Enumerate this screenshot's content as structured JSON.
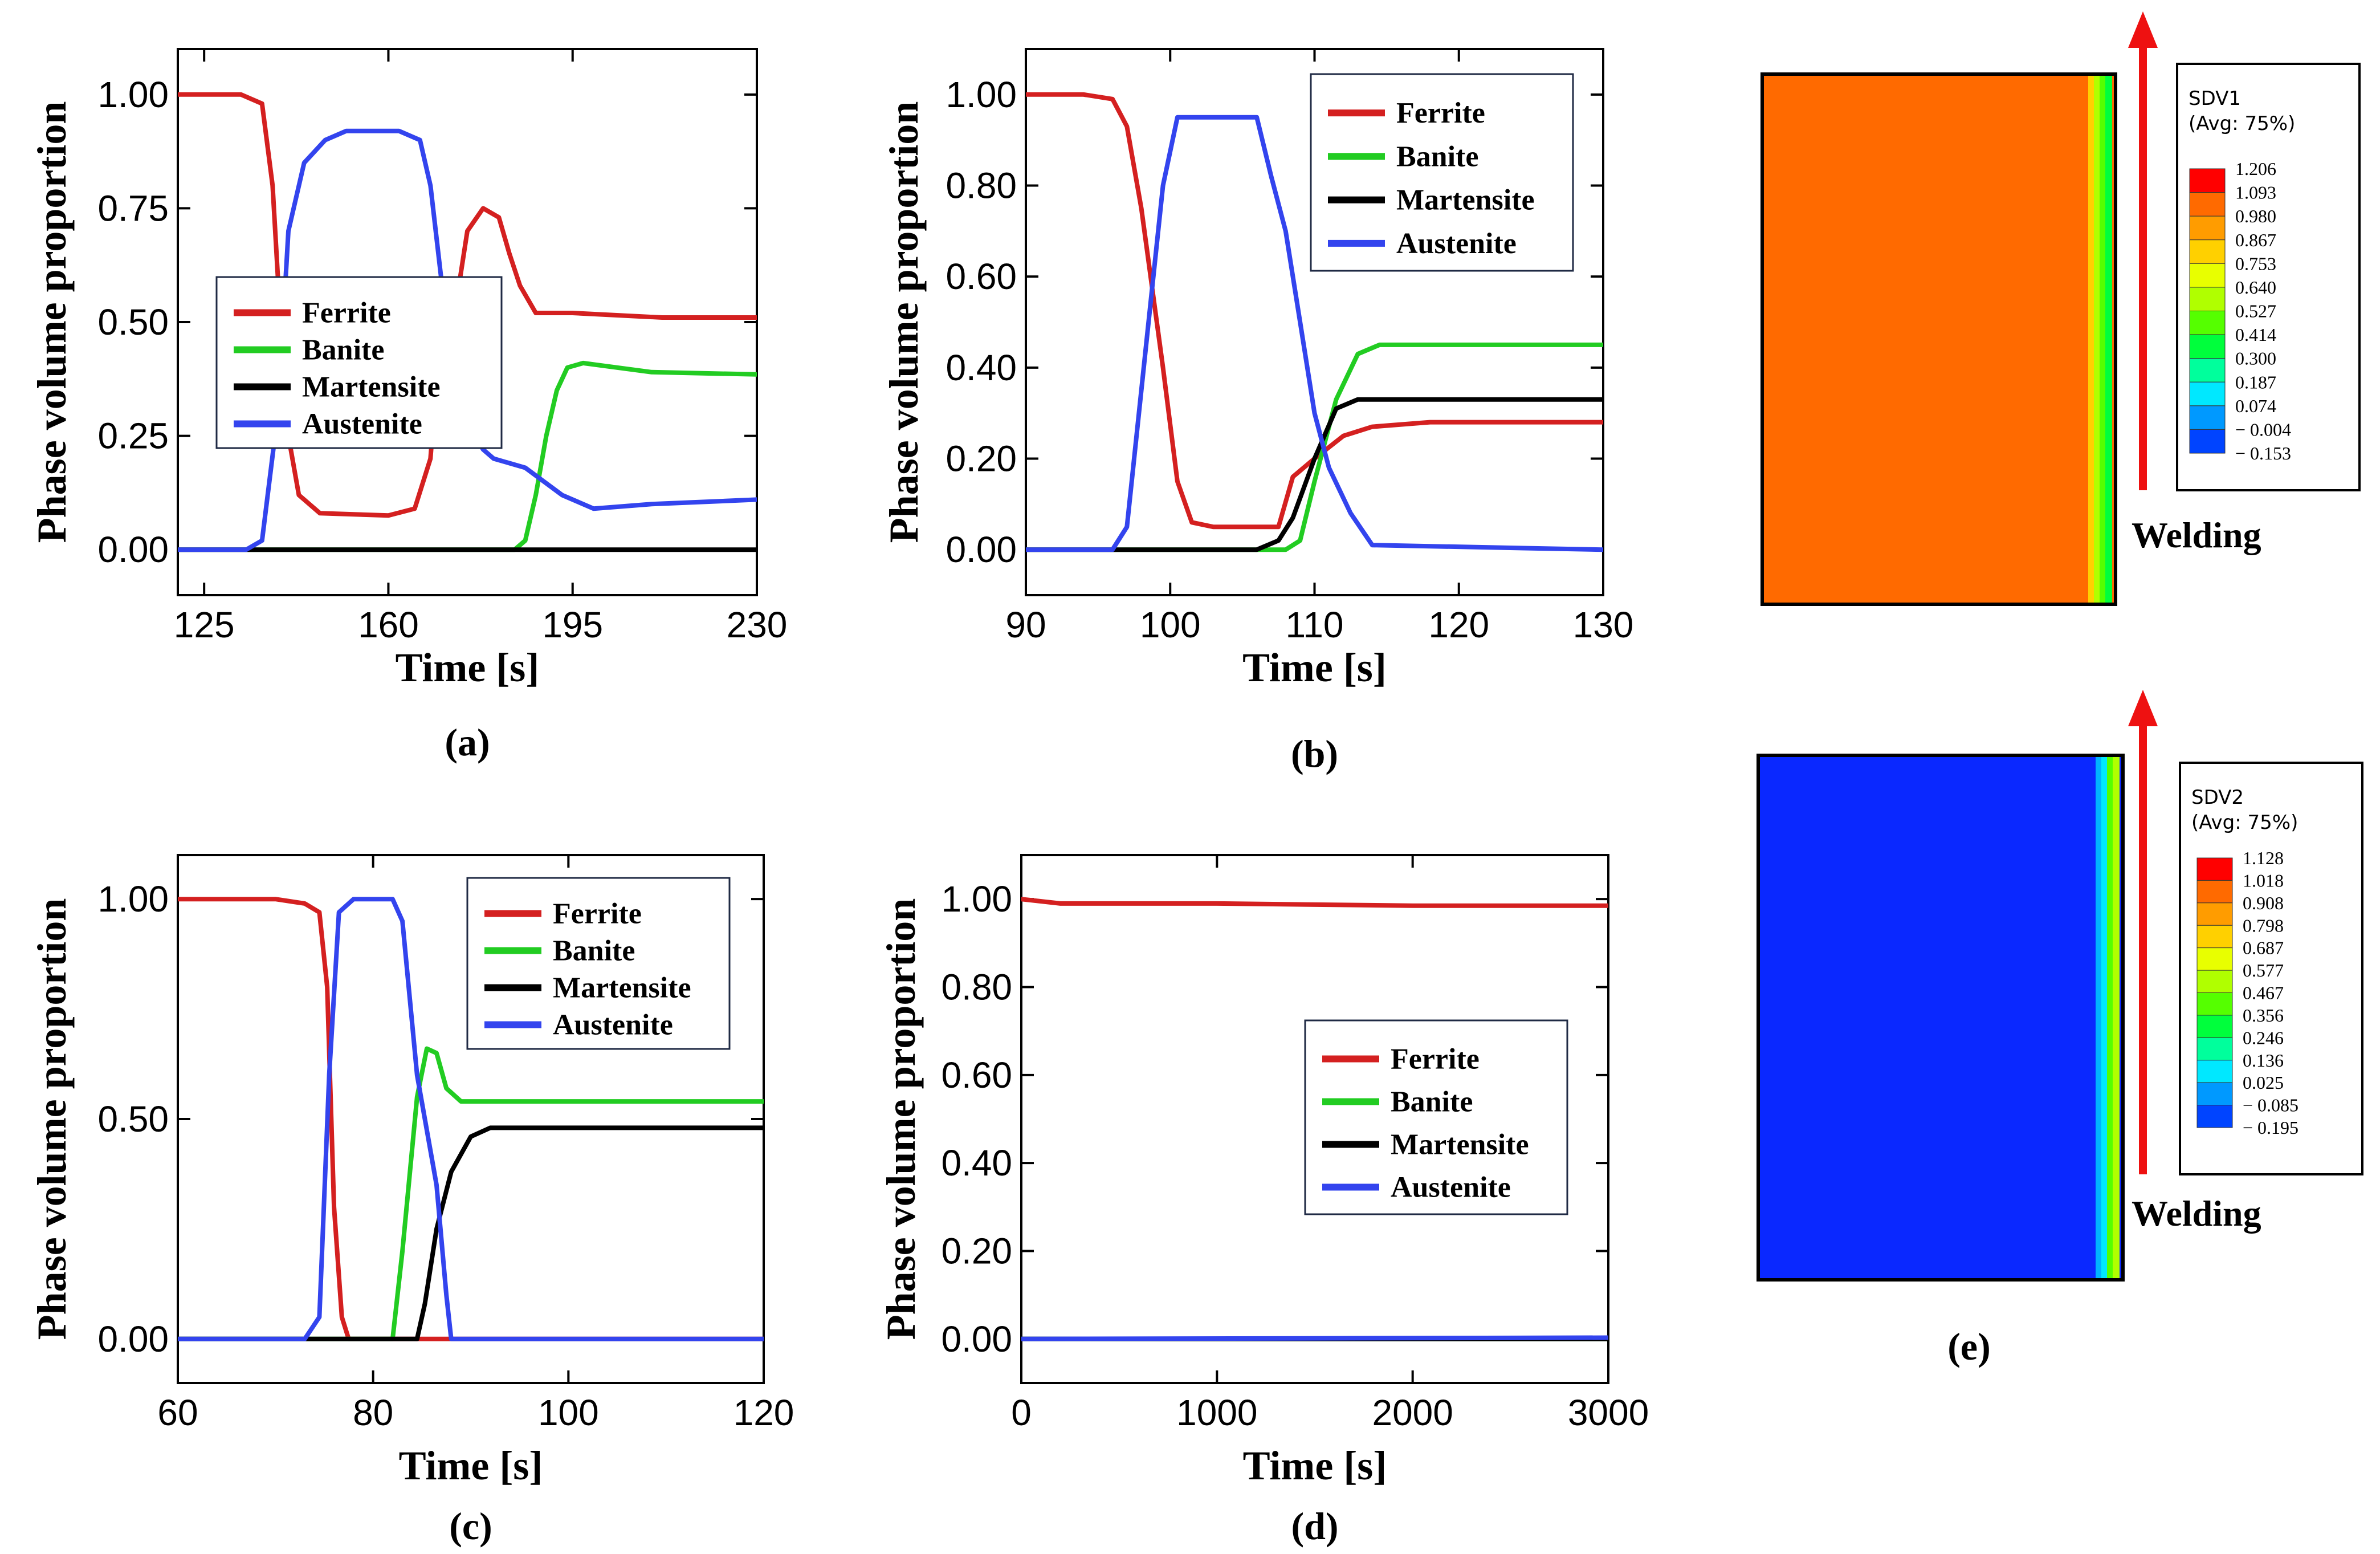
{
  "colors": {
    "ferrite": "#d42020",
    "banite": "#22cc22",
    "martensite": "#000000",
    "austenite": "#3344ee",
    "arrow": "#ee1111"
  },
  "chart_data": [
    {
      "id": "a",
      "type": "line",
      "caption": "(a)",
      "xlabel": "Time [s]",
      "ylabel": "Phase volume proportion",
      "xlim": [
        120,
        230
      ],
      "ylim": [
        -0.1,
        1.1
      ],
      "xticks": [
        125,
        160,
        195,
        230
      ],
      "xtick_labels": [
        "125",
        "160",
        "195",
        "230"
      ],
      "yticks": [
        0,
        0.25,
        0.5,
        0.75,
        1
      ],
      "ytick_labels": [
        "0.00",
        "0.25",
        "0.50",
        "0.75",
        "1.00"
      ],
      "legend": [
        "Ferrite",
        "Banite",
        "Martensite",
        "Austenite"
      ],
      "series": [
        {
          "name": "Ferrite",
          "color_key": "ferrite",
          "points": [
            [
              120,
              1
            ],
            [
              132,
              1
            ],
            [
              136,
              0.98
            ],
            [
              138,
              0.8
            ],
            [
              139.5,
              0.5
            ],
            [
              141,
              0.25
            ],
            [
              143,
              0.12
            ],
            [
              147,
              0.08
            ],
            [
              160,
              0.075
            ],
            [
              165,
              0.09
            ],
            [
              168,
              0.2
            ],
            [
              170,
              0.5
            ],
            [
              173,
              0.55
            ],
            [
              175,
              0.7
            ],
            [
              178,
              0.75
            ],
            [
              181,
              0.73
            ],
            [
              183,
              0.65
            ],
            [
              185,
              0.58
            ],
            [
              188,
              0.52
            ],
            [
              195,
              0.52
            ],
            [
              212,
              0.51
            ],
            [
              230,
              0.51
            ]
          ]
        },
        {
          "name": "Banite",
          "color_key": "banite",
          "points": [
            [
              120,
              0
            ],
            [
              184,
              0
            ],
            [
              186,
              0.02
            ],
            [
              188,
              0.12
            ],
            [
              190,
              0.25
            ],
            [
              192,
              0.35
            ],
            [
              194,
              0.4
            ],
            [
              197,
              0.41
            ],
            [
              210,
              0.39
            ],
            [
              230,
              0.385
            ]
          ]
        },
        {
          "name": "Martensite",
          "color_key": "martensite",
          "points": [
            [
              120,
              0
            ],
            [
              230,
              0
            ]
          ]
        },
        {
          "name": "Austenite",
          "color_key": "austenite",
          "points": [
            [
              120,
              0
            ],
            [
              133,
              0
            ],
            [
              136,
              0.02
            ],
            [
              139,
              0.3
            ],
            [
              141,
              0.7
            ],
            [
              144,
              0.85
            ],
            [
              148,
              0.9
            ],
            [
              152,
              0.92
            ],
            [
              162,
              0.92
            ],
            [
              166,
              0.9
            ],
            [
              168,
              0.8
            ],
            [
              170,
              0.6
            ],
            [
              172,
              0.45
            ],
            [
              174,
              0.32
            ],
            [
              176,
              0.26
            ],
            [
              178,
              0.22
            ],
            [
              180,
              0.2
            ],
            [
              186,
              0.18
            ],
            [
              193,
              0.12
            ],
            [
              199,
              0.09
            ],
            [
              210,
              0.1
            ],
            [
              230,
              0.11
            ]
          ]
        }
      ]
    },
    {
      "id": "b",
      "type": "line",
      "caption": "(b)",
      "xlabel": "Time [s]",
      "ylabel": "Phase volume proportion",
      "xlim": [
        90,
        130
      ],
      "ylim": [
        -0.1,
        1.1
      ],
      "xticks": [
        90,
        100,
        110,
        120,
        130
      ],
      "xtick_labels": [
        "90",
        "100",
        "110",
        "120",
        "130"
      ],
      "yticks": [
        0,
        0.2,
        0.4,
        0.6,
        0.8,
        1
      ],
      "ytick_labels": [
        "0.00",
        "0.20",
        "0.40",
        "0.60",
        "0.80",
        "1.00"
      ],
      "legend": [
        "Ferrite",
        "Banite",
        "Martensite",
        "Austenite"
      ],
      "series": [
        {
          "name": "Ferrite",
          "color_key": "ferrite",
          "points": [
            [
              90,
              1
            ],
            [
              94,
              1
            ],
            [
              96,
              0.99
            ],
            [
              97,
              0.93
            ],
            [
              98,
              0.75
            ],
            [
              99.5,
              0.4
            ],
            [
              100.5,
              0.15
            ],
            [
              101.5,
              0.06
            ],
            [
              103,
              0.05
            ],
            [
              107.5,
              0.05
            ],
            [
              108.5,
              0.16
            ],
            [
              110,
              0.2
            ],
            [
              112,
              0.25
            ],
            [
              114,
              0.27
            ],
            [
              118,
              0.28
            ],
            [
              130,
              0.28
            ]
          ]
        },
        {
          "name": "Banite",
          "color_key": "banite",
          "points": [
            [
              90,
              0
            ],
            [
              108,
              0
            ],
            [
              109,
              0.02
            ],
            [
              110,
              0.15
            ],
            [
              111.5,
              0.33
            ],
            [
              113,
              0.43
            ],
            [
              114.5,
              0.45
            ],
            [
              120,
              0.45
            ],
            [
              130,
              0.45
            ]
          ]
        },
        {
          "name": "Martensite",
          "color_key": "martensite",
          "points": [
            [
              90,
              0
            ],
            [
              106,
              0
            ],
            [
              107.5,
              0.02
            ],
            [
              108.5,
              0.07
            ],
            [
              110,
              0.2
            ],
            [
              111.5,
              0.31
            ],
            [
              113,
              0.33
            ],
            [
              130,
              0.33
            ]
          ]
        },
        {
          "name": "Austenite",
          "color_key": "austenite",
          "points": [
            [
              90,
              0
            ],
            [
              96,
              0
            ],
            [
              97,
              0.05
            ],
            [
              98,
              0.35
            ],
            [
              99.5,
              0.8
            ],
            [
              100.5,
              0.95
            ],
            [
              106,
              0.95
            ],
            [
              107,
              0.82
            ],
            [
              108,
              0.7
            ],
            [
              109,
              0.5
            ],
            [
              110,
              0.3
            ],
            [
              111,
              0.18
            ],
            [
              112.5,
              0.08
            ],
            [
              114,
              0.01
            ],
            [
              130,
              0
            ]
          ]
        }
      ]
    },
    {
      "id": "c",
      "type": "line",
      "caption": "(c)",
      "xlabel": "Time [s]",
      "ylabel": "Phase volume proportion",
      "xlim": [
        60,
        120
      ],
      "ylim": [
        -0.1,
        1.1
      ],
      "xticks": [
        60,
        80,
        100,
        120
      ],
      "xtick_labels": [
        "60",
        "80",
        "100",
        "120"
      ],
      "yticks": [
        0,
        0.5,
        1
      ],
      "ytick_labels": [
        "0.00",
        "0.50",
        "1.00"
      ],
      "legend": [
        "Ferrite",
        "Banite",
        "Martensite",
        "Austenite"
      ],
      "series": [
        {
          "name": "Ferrite",
          "color_key": "ferrite",
          "points": [
            [
              60,
              1
            ],
            [
              70,
              1
            ],
            [
              73,
              0.99
            ],
            [
              74.5,
              0.97
            ],
            [
              75.3,
              0.8
            ],
            [
              76,
              0.3
            ],
            [
              76.8,
              0.05
            ],
            [
              77.5,
              0
            ],
            [
              120,
              0
            ]
          ]
        },
        {
          "name": "Banite",
          "color_key": "banite",
          "points": [
            [
              60,
              0
            ],
            [
              82,
              0
            ],
            [
              83,
              0.2
            ],
            [
              84.5,
              0.55
            ],
            [
              85.5,
              0.66
            ],
            [
              86.5,
              0.65
            ],
            [
              87.5,
              0.57
            ],
            [
              89,
              0.54
            ],
            [
              120,
              0.54
            ]
          ]
        },
        {
          "name": "Martensite",
          "color_key": "martensite",
          "points": [
            [
              60,
              0
            ],
            [
              84.5,
              0
            ],
            [
              85.3,
              0.08
            ],
            [
              86.5,
              0.25
            ],
            [
              88,
              0.38
            ],
            [
              90,
              0.46
            ],
            [
              92,
              0.48
            ],
            [
              120,
              0.48
            ]
          ]
        },
        {
          "name": "Austenite",
          "color_key": "austenite",
          "points": [
            [
              60,
              0
            ],
            [
              73,
              0
            ],
            [
              74.5,
              0.05
            ],
            [
              75.5,
              0.6
            ],
            [
              76.5,
              0.97
            ],
            [
              78,
              1
            ],
            [
              82,
              1
            ],
            [
              83,
              0.95
            ],
            [
              84.5,
              0.6
            ],
            [
              86.5,
              0.35
            ],
            [
              87.5,
              0.1
            ],
            [
              88,
              0
            ],
            [
              120,
              0
            ]
          ]
        }
      ]
    },
    {
      "id": "d",
      "type": "line",
      "caption": "(d)",
      "xlabel": "Time [s]",
      "ylabel": "Phase volume proportion",
      "xlim": [
        0,
        3000
      ],
      "ylim": [
        -0.1,
        1.1
      ],
      "xticks": [
        0,
        1000,
        2000,
        3000
      ],
      "xtick_labels": [
        "0",
        "1000",
        "2000",
        "3000"
      ],
      "yticks": [
        0,
        0.2,
        0.4,
        0.6,
        0.8,
        1
      ],
      "ytick_labels": [
        "0.00",
        "0.20",
        "0.40",
        "0.60",
        "0.80",
        "1.00"
      ],
      "legend": [
        "Ferrite",
        "Banite",
        "Martensite",
        "Austenite"
      ],
      "series": [
        {
          "name": "Ferrite",
          "color_key": "ferrite",
          "points": [
            [
              0,
              1
            ],
            [
              200,
              0.99
            ],
            [
              1000,
              0.99
            ],
            [
              2000,
              0.985
            ],
            [
              3000,
              0.985
            ]
          ]
        },
        {
          "name": "Banite",
          "color_key": "banite",
          "points": [
            [
              0,
              0
            ],
            [
              3000,
              0
            ]
          ]
        },
        {
          "name": "Martensite",
          "color_key": "martensite",
          "points": [
            [
              0,
              0
            ],
            [
              3000,
              0
            ]
          ]
        },
        {
          "name": "Austenite",
          "color_key": "austenite",
          "points": [
            [
              0,
              0
            ],
            [
              3000,
              0.003
            ]
          ]
        }
      ]
    },
    {
      "id": "e",
      "type": "heatmap",
      "caption": "(e)",
      "welding_label": "Welding",
      "contours": [
        {
          "title": "SDV1",
          "subtitle": "(Avg: 75%)",
          "field_color": "#ff6a00",
          "levels": [
            "1.206",
            "1.093",
            "0.980",
            "0.867",
            "0.753",
            "0.640",
            "0.527",
            "0.414",
            "0.300",
            "0.187",
            "0.074",
            "− 0.004",
            "− 0.153"
          ],
          "band_colors": [
            "#ff0000",
            "#ff6a00",
            "#ff9c00",
            "#ffd000",
            "#e8ff00",
            "#b0ff00",
            "#55ff00",
            "#00ff3c",
            "#00ff9c",
            "#00e8ff",
            "#0099ff",
            "#0044ff"
          ]
        },
        {
          "title": "SDV2",
          "subtitle": "(Avg: 75%)",
          "field_color": "#0a28ff",
          "levels": [
            "1.128",
            "1.018",
            "0.908",
            "0.798",
            "0.687",
            "0.577",
            "0.467",
            "0.356",
            "0.246",
            "0.136",
            "0.025",
            "− 0.085",
            "− 0.195"
          ],
          "band_colors": [
            "#ff0000",
            "#ff6a00",
            "#ff9c00",
            "#ffd000",
            "#e8ff00",
            "#b0ff00",
            "#55ff00",
            "#00ff3c",
            "#00ff9c",
            "#00e8ff",
            "#0099ff",
            "#0044ff"
          ]
        }
      ]
    }
  ]
}
